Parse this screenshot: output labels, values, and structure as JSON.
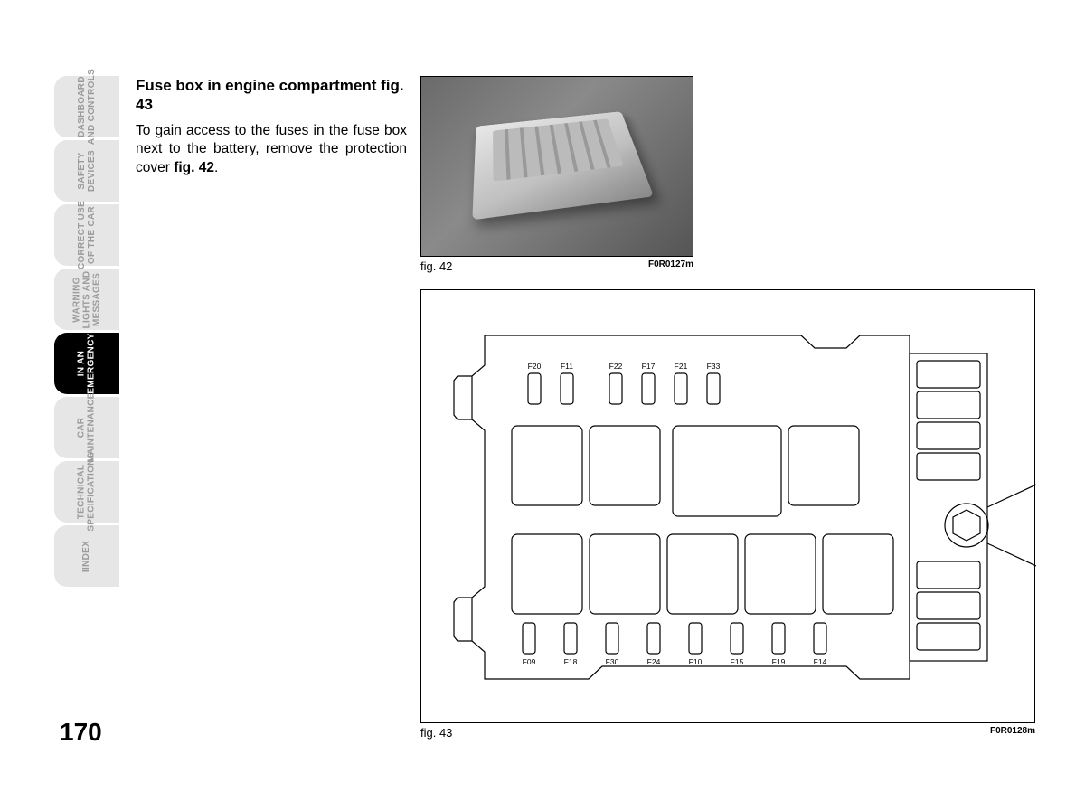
{
  "sidebar": {
    "tabs": [
      {
        "line1": "DASHBOARD",
        "line2": "AND CONTROLS",
        "active": false
      },
      {
        "line1": "SAFETY",
        "line2": "DEVICES",
        "active": false
      },
      {
        "line1": "CORRECT USE",
        "line2": "OF THE CAR",
        "active": false
      },
      {
        "line1": "WARNING",
        "line2": "LIGHTS AND",
        "line3": "MESSAGES",
        "active": false
      },
      {
        "line1": "IN AN",
        "line2": "EMERGENCY",
        "active": true
      },
      {
        "line1": "CAR",
        "line2": "MAINTENANCE",
        "active": false
      },
      {
        "line1": "TECHNICAL",
        "line2": "SPECIFICATIONS",
        "active": false
      },
      {
        "line1": "IINDEX",
        "line2": "",
        "active": false
      }
    ]
  },
  "content": {
    "heading": "Fuse box in engine compartment fig. 43",
    "body_pre": "To gain access to the fuses in the fuse box next to the battery, remove the protection cover ",
    "body_bold": "fig. 42",
    "body_post": "."
  },
  "fig42": {
    "caption": "fig. 42",
    "code": "F0R0127m"
  },
  "fig43": {
    "caption": "fig. 43",
    "code": "F0R0128m",
    "top_fuses": [
      "F20",
      "F11",
      "F22",
      "F17",
      "F21",
      "F33"
    ],
    "bottom_fuses": [
      "F09",
      "F18",
      "F30",
      "F24",
      "F10",
      "F15",
      "F19",
      "F14"
    ],
    "stroke_color": "#000000",
    "stroke_width": 1.2,
    "fill_color": "#ffffff",
    "background": "#ffffff"
  },
  "page_number": "170"
}
